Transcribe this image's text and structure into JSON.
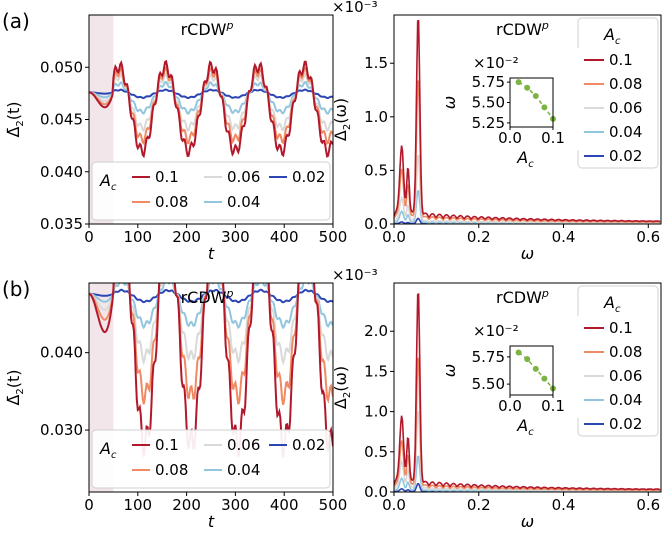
{
  "colors": {
    "0.1": "#b2182b",
    "0.08": "#ef8a62",
    "0.06": "#d9d9d9",
    "0.04": "#92c5de",
    "0.02": "#2c46b5",
    "inset": "#7cb342",
    "shade": "#f2e6ea"
  },
  "chart_data": [
    {
      "id": "a-left",
      "panel_label": "(a)",
      "type": "line",
      "title": "rCDW",
      "title_sup": "p",
      "xlabel": "t",
      "ylabel_main": "Δ̄",
      "ylabel_sub": "2",
      "ylabel_tail": "(t)",
      "xlim": [
        0,
        500
      ],
      "ylim": [
        0.035,
        0.055
      ],
      "xticks": [
        "0",
        "100",
        "200",
        "300",
        "400",
        "500"
      ],
      "yticks": [
        "0.035",
        "0.040",
        "0.045",
        "0.050"
      ],
      "shaded_region": [
        0,
        50
      ],
      "legend": {
        "title": "A",
        "title_sub": "c",
        "placement": "bottom",
        "entries": [
          "0.1",
          "0.08",
          "0.06",
          "0.04",
          "0.02"
        ]
      },
      "series": [
        {
          "name": "0.1",
          "base": 0.0476,
          "amp": 0.0045,
          "period": 95,
          "phase": 0.8
        },
        {
          "name": "0.08",
          "base": 0.0476,
          "amp": 0.0036,
          "period": 95,
          "phase": 0.8
        },
        {
          "name": "0.06",
          "base": 0.0476,
          "amp": 0.0027,
          "period": 95,
          "phase": 0.8
        },
        {
          "name": "0.04",
          "base": 0.0476,
          "amp": 0.0015,
          "period": 95,
          "phase": 0.8
        },
        {
          "name": "0.02",
          "base": 0.0476,
          "amp": 0.0004,
          "period": 95,
          "phase": 0.8
        }
      ]
    },
    {
      "id": "a-right",
      "type": "line",
      "title": "rCDW",
      "title_sup": "p",
      "xlabel": "ω",
      "ylabel_main": "Δ",
      "ylabel_sub": "2",
      "ylabel_tail": "(ω)",
      "multiplier": "×10⁻³",
      "xlim": [
        0,
        0.63
      ],
      "ylim": [
        0,
        1.95
      ],
      "xticks": [
        "0.0",
        "0.2",
        "0.4",
        "0.6"
      ],
      "yticks": [
        "0.0",
        "0.5",
        "1.0",
        "1.5"
      ],
      "legend": {
        "title": "A",
        "title_sub": "c",
        "placement": "top-right",
        "entries": [
          "0.1",
          "0.08",
          "0.06",
          "0.04",
          "0.02"
        ]
      },
      "series": [
        {
          "name": "0.1",
          "peak": 1.85
        },
        {
          "name": "0.08",
          "peak": 1.3
        },
        {
          "name": "0.06",
          "peak": 0.62
        },
        {
          "name": "0.04",
          "peak": 0.3
        },
        {
          "name": "0.02",
          "peak": 0.05
        }
      ],
      "inset": {
        "xlabel": "A",
        "xlabel_sub": "c",
        "ylabel": "ω",
        "multiplier": "×10⁻²",
        "xlim": [
          0,
          0.1
        ],
        "ylim": [
          5.2,
          5.8
        ],
        "xticks": [
          "0.0",
          "0.1"
        ],
        "yticks": [
          "5.25",
          "5.50",
          "5.75"
        ],
        "points": {
          "x": [
            0.02,
            0.04,
            0.06,
            0.08,
            0.1
          ],
          "y": [
            5.75,
            5.68,
            5.58,
            5.44,
            5.3
          ]
        }
      }
    },
    {
      "id": "b-left",
      "panel_label": "(b)",
      "type": "line",
      "title": "rCDW",
      "title_sup": "p",
      "xlabel": "t",
      "ylabel_main": "Δ̄",
      "ylabel_sub": "2",
      "ylabel_tail": "(t)",
      "xlim": [
        0,
        500
      ],
      "ylim": [
        0.022,
        0.049
      ],
      "xticks": [
        "0",
        "100",
        "200",
        "300",
        "400",
        "500"
      ],
      "yticks": [
        "0.030",
        "0.040"
      ],
      "shaded_region": [
        0,
        50
      ],
      "legend": {
        "title": "A",
        "title_sub": "c",
        "placement": "bottom",
        "entries": [
          "0.1",
          "0.08",
          "0.06",
          "0.04",
          "0.02"
        ]
      },
      "series": [
        {
          "name": "0.1",
          "base": 0.0476,
          "amp": 0.0155,
          "period": 95,
          "phase": 0.45
        },
        {
          "name": "0.08",
          "base": 0.0476,
          "amp": 0.0105,
          "period": 95,
          "phase": 0.45
        },
        {
          "name": "0.06",
          "base": 0.0476,
          "amp": 0.0065,
          "period": 95,
          "phase": 0.45
        },
        {
          "name": "0.04",
          "base": 0.0476,
          "amp": 0.0032,
          "period": 95,
          "phase": 0.45
        },
        {
          "name": "0.02",
          "base": 0.0476,
          "amp": 0.0008,
          "period": 95,
          "phase": 0.45
        }
      ]
    },
    {
      "id": "b-right",
      "type": "line",
      "title": "rCDW",
      "title_sup": "p",
      "xlabel": "ω",
      "ylabel_main": "Δ",
      "ylabel_sub": "2",
      "ylabel_tail": "(ω)",
      "multiplier": "×10⁻³",
      "xlim": [
        0,
        0.63
      ],
      "ylim": [
        0,
        2.6
      ],
      "xticks": [
        "0.0",
        "0.2",
        "0.4",
        "0.6"
      ],
      "yticks": [
        "0.0",
        "0.5",
        "1.0",
        "1.5",
        "2.0"
      ],
      "legend": {
        "title": "A",
        "title_sub": "c",
        "placement": "top-right",
        "entries": [
          "0.1",
          "0.08",
          "0.06",
          "0.04",
          "0.02"
        ]
      },
      "series": [
        {
          "name": "0.1",
          "peak": 2.4
        },
        {
          "name": "0.08",
          "peak": 1.62
        },
        {
          "name": "0.06",
          "peak": 0.97
        },
        {
          "name": "0.04",
          "peak": 0.43
        },
        {
          "name": "0.02",
          "peak": 0.1
        }
      ],
      "inset": {
        "xlabel": "A",
        "xlabel_sub": "c",
        "ylabel": "ω",
        "multiplier": "×10⁻²",
        "xlim": [
          0,
          0.1
        ],
        "ylim": [
          5.4,
          5.85
        ],
        "xticks": [
          "0.0",
          "0.1"
        ],
        "yticks": [
          "5.50",
          "5.75"
        ],
        "points": {
          "x": [
            0.02,
            0.04,
            0.06,
            0.08,
            0.1
          ],
          "y": [
            5.79,
            5.73,
            5.64,
            5.55,
            5.46
          ]
        }
      }
    }
  ]
}
